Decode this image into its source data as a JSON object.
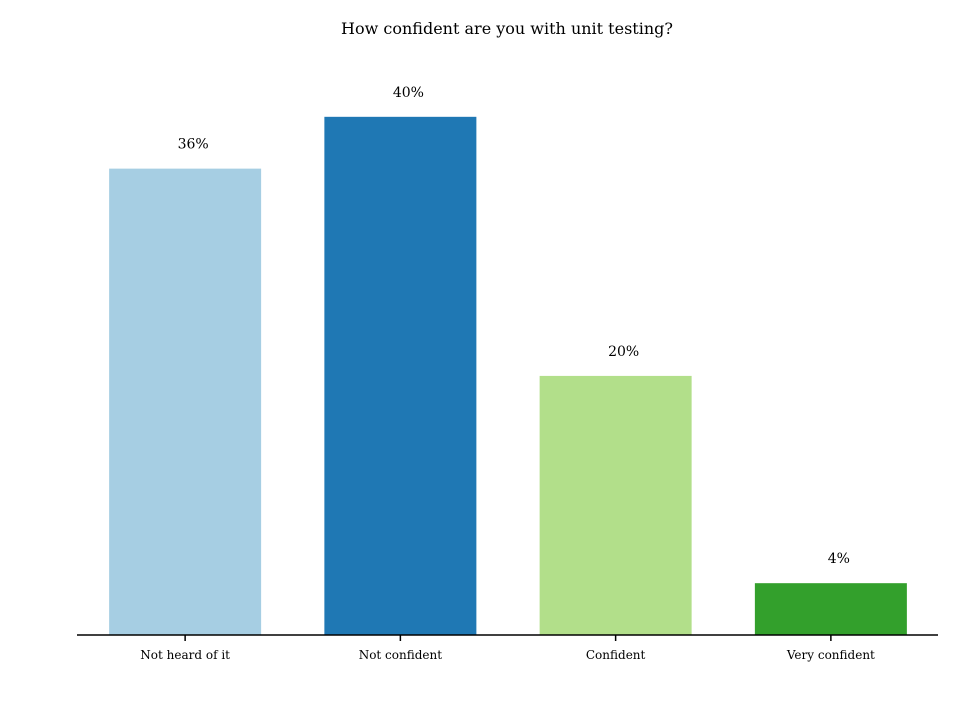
{
  "chart_data": {
    "type": "bar",
    "title": "How confident are you with unit testing?",
    "xlabel": "",
    "ylabel": "",
    "categories": [
      "Not heard of it",
      "Not confident",
      "Confident",
      "Very confident"
    ],
    "values": [
      36,
      40,
      20,
      4
    ],
    "value_labels": [
      "36%",
      "40%",
      "20%",
      "4%"
    ],
    "colors": [
      "#a6cee3",
      "#1f78b4",
      "#b2df8a",
      "#33a02c"
    ],
    "ylim": [
      0,
      44
    ],
    "grid": false,
    "legend": "none"
  }
}
